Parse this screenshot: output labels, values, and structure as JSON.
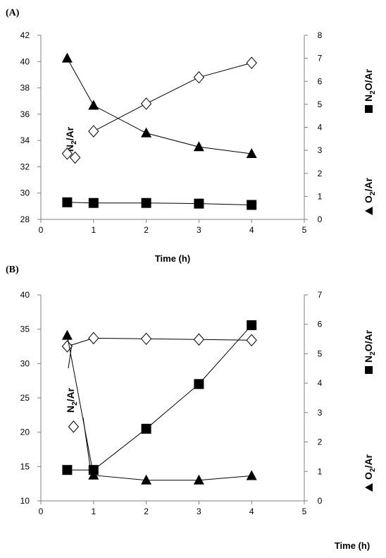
{
  "chart_data": [
    {
      "type": "line",
      "panel_label": "(A)",
      "xlabel": "Time (h)",
      "xlim": [
        0,
        5
      ],
      "x_ticks": [
        0,
        1,
        2,
        3,
        4,
        5
      ],
      "y_left": {
        "lim": [
          28,
          42
        ],
        "ticks": [
          28,
          30,
          32,
          34,
          36,
          38,
          40,
          42
        ]
      },
      "y_right": {
        "lim": [
          0,
          8
        ],
        "ticks": [
          0,
          1,
          2,
          3,
          4,
          5,
          6,
          7,
          8
        ]
      },
      "grid": false,
      "series": [
        {
          "name": "N2/Ar",
          "marker": "diamond-open",
          "axis": "left",
          "x": [
            0.5,
            1,
            2,
            3,
            4
          ],
          "y": [
            33.0,
            34.7,
            36.8,
            38.8,
            39.9
          ],
          "connect_from_index": 1
        },
        {
          "name": "N2O/Ar",
          "marker": "square-filled",
          "axis": "left",
          "x": [
            0.5,
            1,
            2,
            3,
            4
          ],
          "y": [
            29.3,
            29.25,
            29.25,
            29.2,
            29.1
          ]
        },
        {
          "name": "O2/Ar",
          "marker": "triangle-filled",
          "axis": "right",
          "x": [
            0.5,
            1,
            2,
            3,
            4
          ],
          "y": [
            7.0,
            4.95,
            3.75,
            3.15,
            2.85
          ]
        }
      ],
      "annotations": [
        {
          "text_main": "N",
          "text_sub": "2",
          "text_tail": "/Ar",
          "marker": "diamond-open",
          "x": 0.65,
          "y": 32.7
        }
      ],
      "right_labels": [
        {
          "text_main": "N",
          "text_sub": "2",
          "text_tail": "O/Ar",
          "marker": "square-filled"
        },
        {
          "text_main": "O",
          "text_sub": "2",
          "text_tail": "/Ar",
          "marker": "triangle-filled"
        }
      ]
    },
    {
      "type": "line",
      "panel_label": "(B)",
      "xlabel": "Time (h)",
      "xlim": [
        0,
        5
      ],
      "x_ticks": [
        0,
        1,
        2,
        3,
        4,
        5
      ],
      "y_left": {
        "lim": [
          10,
          40
        ],
        "ticks": [
          10,
          15,
          20,
          25,
          30,
          35,
          40
        ]
      },
      "y_right": {
        "lim": [
          0,
          7
        ],
        "ticks": [
          0,
          1,
          2,
          3,
          4,
          5,
          6,
          7
        ]
      },
      "grid": false,
      "series": [
        {
          "name": "N2/Ar",
          "marker": "diamond-open",
          "axis": "left",
          "x": [
            0.5,
            1,
            2,
            3,
            4
          ],
          "y": [
            32.5,
            33.7,
            33.6,
            33.5,
            33.4
          ]
        },
        {
          "name": "N2O/Ar",
          "marker": "square-filled",
          "axis": "right",
          "x": [
            0.5,
            1,
            2,
            3,
            4
          ],
          "y": [
            1.05,
            1.05,
            2.45,
            3.97,
            5.97
          ]
        },
        {
          "name": "O2/Ar",
          "marker": "triangle-filled",
          "axis": "right",
          "x": [
            0.5,
            1,
            2,
            3,
            4
          ],
          "y": [
            5.62,
            0.87,
            0.7,
            0.7,
            0.85
          ]
        }
      ],
      "annotations": [
        {
          "text_main": "N",
          "text_sub": "2",
          "text_tail": "/Ar",
          "marker": "diamond-open",
          "x": 0.62,
          "y": 20.8
        }
      ],
      "right_labels": [
        {
          "text_main": "N",
          "text_sub": "2",
          "text_tail": "O/Ar",
          "marker": "square-filled"
        },
        {
          "text_main": "O",
          "text_sub": "2",
          "text_tail": "/Ar",
          "marker": "triangle-filled"
        }
      ]
    }
  ]
}
